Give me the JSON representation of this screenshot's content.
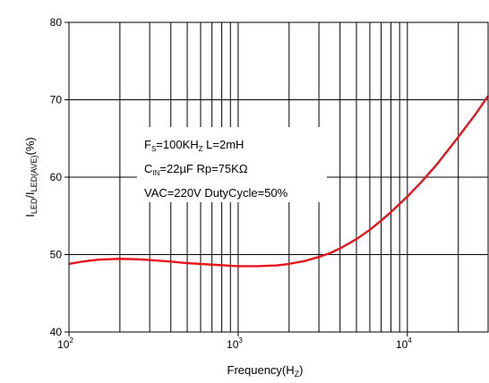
{
  "chart_data": {
    "type": "line",
    "xscale": "log",
    "xlim": [
      100,
      30000
    ],
    "ylim": [
      40,
      80
    ],
    "grid": true,
    "xlabel": {
      "main": "Frequency(H",
      "sub": "Z",
      "end": ")"
    },
    "ylabel": {
      "main": "I",
      "sub1": "LED",
      "mid": "/I",
      "sub2": "LED(AVE)",
      "end": "(%)"
    },
    "yticks": [
      "40",
      "50",
      "60",
      "70",
      "80"
    ],
    "xticks": [
      {
        "value": 100,
        "base": "10",
        "exp": "2"
      },
      {
        "value": 1000,
        "base": "10",
        "exp": "3"
      },
      {
        "value": 10000,
        "base": "10",
        "exp": "4"
      }
    ],
    "annotations": [
      {
        "parts": [
          {
            "t": "F",
            "sub": false
          },
          {
            "t": "S",
            "sub": true
          },
          {
            "t": "=100KH",
            "sub": false
          },
          {
            "t": "Z",
            "sub": true
          },
          {
            "t": " L=2mH",
            "sub": false
          }
        ]
      },
      {
        "parts": [
          {
            "t": "C",
            "sub": false
          },
          {
            "t": "IN",
            "sub": true
          },
          {
            "t": "=22µF Rp=75KΩ",
            "sub": false
          }
        ]
      },
      {
        "parts": [
          {
            "t": "VAC=220V  DutyCycle=50%",
            "sub": false
          }
        ]
      }
    ],
    "series": [
      {
        "color": "#e8141c",
        "x": [
          100,
          120,
          150,
          200,
          250,
          300,
          400,
          500,
          700,
          1000,
          1300,
          1700,
          2000,
          2500,
          3000,
          3500,
          4000,
          5000,
          6000,
          7000,
          8000,
          10000,
          12000,
          15000,
          20000,
          25000,
          30000
        ],
        "y": [
          48.8,
          49.1,
          49.35,
          49.45,
          49.4,
          49.3,
          49.1,
          48.9,
          48.7,
          48.5,
          48.5,
          48.6,
          48.8,
          49.2,
          49.7,
          50.2,
          50.8,
          52.0,
          53.2,
          54.4,
          55.5,
          57.5,
          59.3,
          61.7,
          65.2,
          68.0,
          70.5
        ]
      }
    ]
  }
}
